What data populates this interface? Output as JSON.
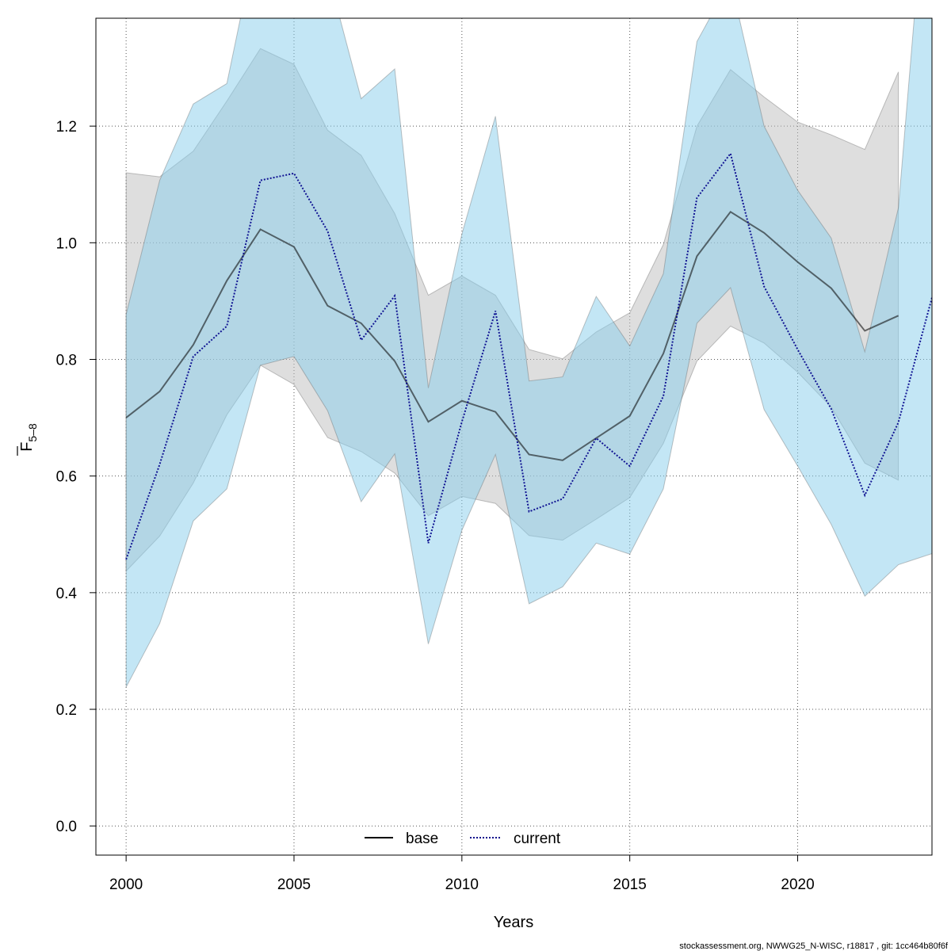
{
  "chart_data": {
    "type": "line",
    "xlabel": "Years",
    "ylabel": {
      "base": "F",
      "sub": "5–8"
    },
    "xlim": [
      1999.1,
      2024
    ],
    "ylim": [
      -0.05,
      1.385
    ],
    "x_ticks": [
      2000,
      2005,
      2010,
      2015,
      2020
    ],
    "y_ticks": [
      0.0,
      0.2,
      0.4,
      0.6,
      0.8,
      1.0,
      1.2
    ],
    "y_tick_labels": [
      "0.0",
      "0.2",
      "0.4",
      "0.6",
      "0.8",
      "1.0",
      "1.2"
    ],
    "grid": true,
    "legend_position": "bottom-center",
    "footer": "stockassessment.org, NWWG25_N-WISC, r18817 , git: 1cc464b80f6f",
    "series": [
      {
        "name": "base",
        "color": "#000000",
        "band_color": "#bebebe",
        "line_style": "solid",
        "x": [
          2000,
          2001,
          2002,
          2003,
          2004,
          2005,
          2006,
          2007,
          2008,
          2009,
          2010,
          2011,
          2012,
          2013,
          2014,
          2015,
          2016,
          2017,
          2018,
          2019,
          2020,
          2021,
          2022,
          2023
        ],
        "values": [
          0.7,
          0.745,
          0.825,
          0.935,
          1.023,
          0.993,
          0.892,
          0.862,
          0.797,
          0.693,
          0.729,
          0.71,
          0.637,
          0.627,
          0.665,
          0.703,
          0.81,
          0.977,
          1.053,
          1.017,
          0.967,
          0.922,
          0.849,
          0.875
        ],
        "lower": [
          0.437,
          0.497,
          0.588,
          0.705,
          0.79,
          0.757,
          0.666,
          0.642,
          0.605,
          0.532,
          0.565,
          0.553,
          0.498,
          0.49,
          0.526,
          0.563,
          0.656,
          0.797,
          0.857,
          0.828,
          0.778,
          0.718,
          0.622,
          0.593
        ],
        "upper": [
          1.12,
          1.113,
          1.157,
          1.243,
          1.333,
          1.306,
          1.193,
          1.15,
          1.05,
          0.91,
          0.943,
          0.91,
          0.817,
          0.801,
          0.847,
          0.88,
          0.997,
          1.2,
          1.297,
          1.25,
          1.207,
          1.185,
          1.16,
          1.293
        ]
      },
      {
        "name": "current",
        "color": "#00008b",
        "band_color": "#87ceeb",
        "line_style": "dotted",
        "x": [
          2000,
          2001,
          2002,
          2003,
          2004,
          2005,
          2006,
          2007,
          2008,
          2009,
          2010,
          2011,
          2012,
          2013,
          2014,
          2015,
          2016,
          2017,
          2018,
          2019,
          2020,
          2021,
          2022,
          2023,
          2024
        ],
        "values": [
          0.457,
          0.62,
          0.805,
          0.857,
          1.107,
          1.119,
          1.02,
          0.833,
          0.909,
          0.485,
          0.693,
          0.883,
          0.539,
          0.561,
          0.665,
          0.617,
          0.737,
          1.077,
          1.153,
          0.925,
          0.817,
          0.715,
          0.567,
          0.692,
          0.906
        ],
        "lower": [
          0.238,
          0.347,
          0.523,
          0.578,
          0.79,
          0.805,
          0.712,
          0.556,
          0.638,
          0.312,
          0.507,
          0.637,
          0.381,
          0.41,
          0.485,
          0.466,
          0.578,
          0.862,
          0.923,
          0.714,
          0.617,
          0.517,
          0.394,
          0.448,
          0.467
        ],
        "upper": [
          0.877,
          1.107,
          1.238,
          1.273,
          1.55,
          1.55,
          1.465,
          1.247,
          1.298,
          0.751,
          1.015,
          1.217,
          0.763,
          0.77,
          0.908,
          0.823,
          0.947,
          1.345,
          1.45,
          1.2,
          1.09,
          1.008,
          0.813,
          1.06,
          1.75
        ]
      }
    ]
  }
}
